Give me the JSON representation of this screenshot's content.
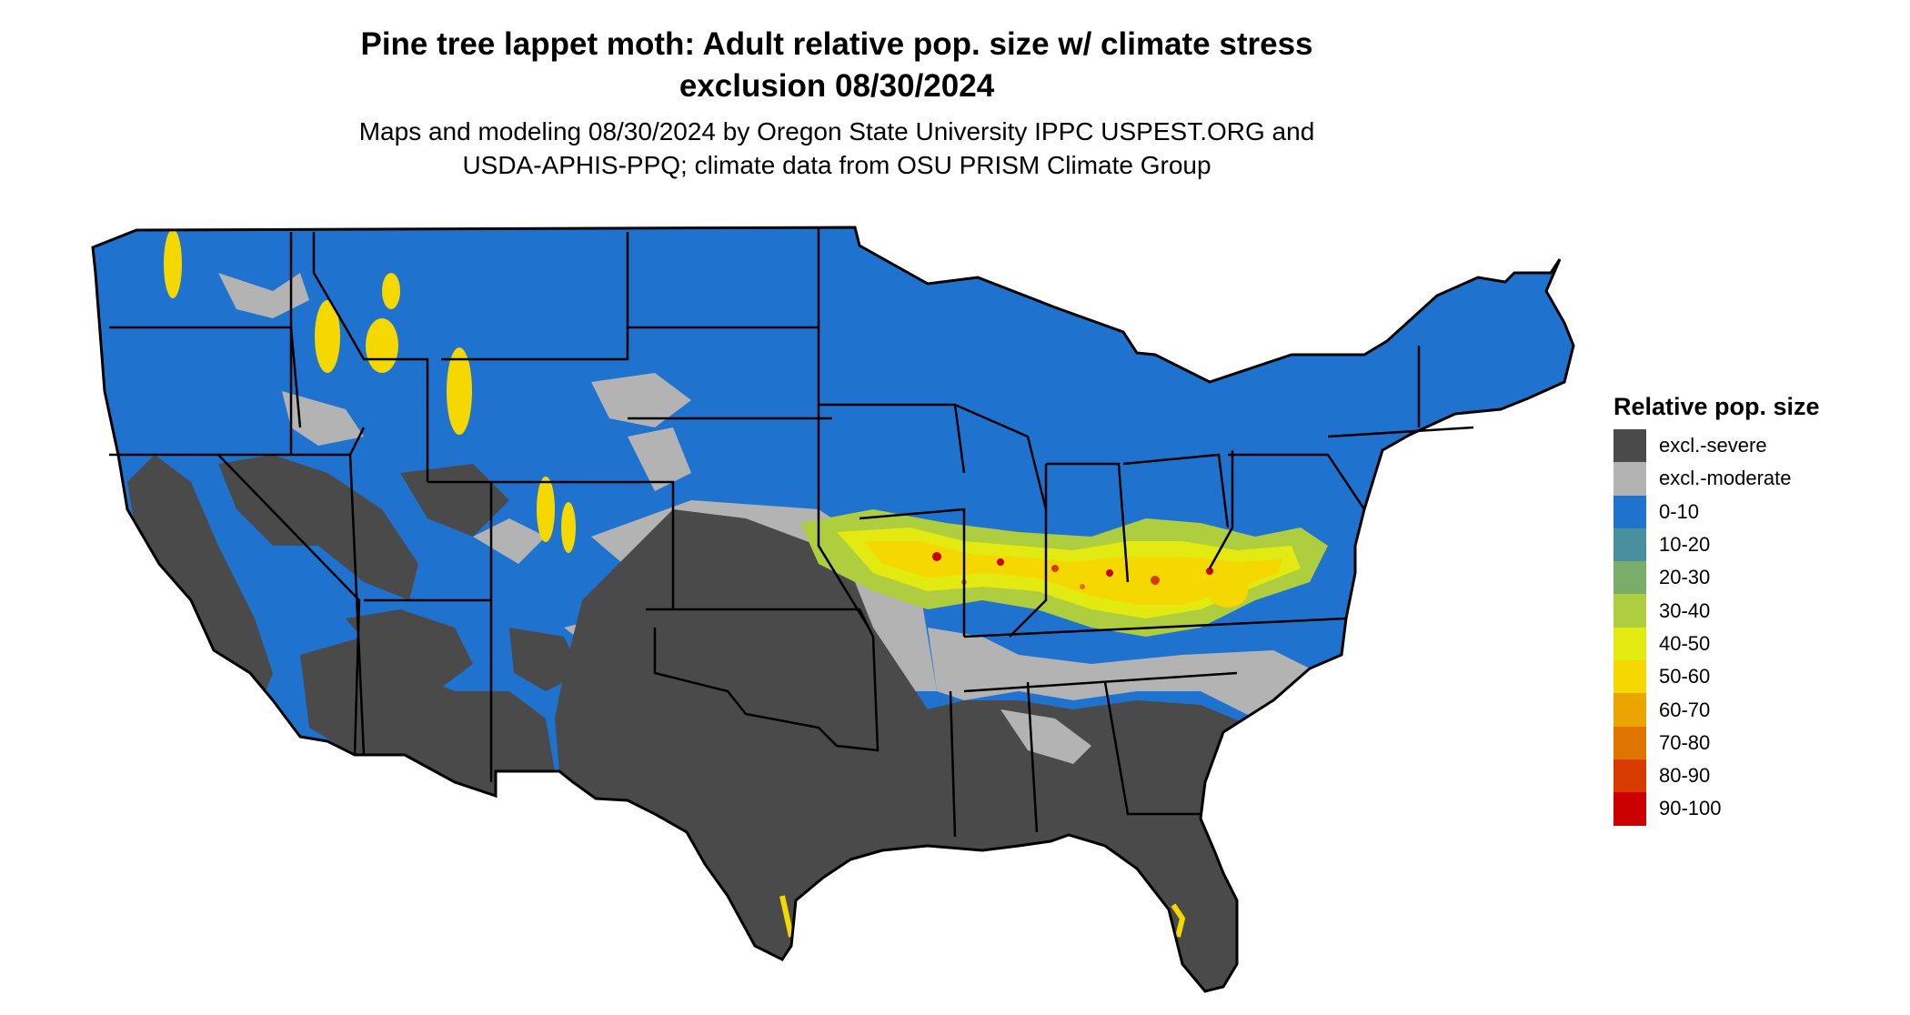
{
  "title_line1": "Pine tree lappet moth: Adult relative pop. size w/ climate stress",
  "title_line2": "exclusion 08/30/2024",
  "subtitle_line1": "Maps and modeling 08/30/2024 by Oregon State University IPPC USPEST.ORG and",
  "subtitle_line2": "USDA-APHIS-PPQ; climate data from OSU PRISM Climate Group",
  "legend": {
    "title": "Relative pop. size",
    "items": [
      {
        "label": "excl.-severe",
        "color": "#4a4a4a"
      },
      {
        "label": "excl.-moderate",
        "color": "#b3b3b3"
      },
      {
        "label": "0-10",
        "color": "#1f73cf"
      },
      {
        "label": "10-20",
        "color": "#4a8f9e"
      },
      {
        "label": "20-30",
        "color": "#7aad6a"
      },
      {
        "label": "30-40",
        "color": "#aecd3f"
      },
      {
        "label": "40-50",
        "color": "#e2ea12"
      },
      {
        "label": "50-60",
        "color": "#f5d800"
      },
      {
        "label": "60-70",
        "color": "#eba500"
      },
      {
        "label": "70-80",
        "color": "#e07400"
      },
      {
        "label": "80-90",
        "color": "#d73b00"
      },
      {
        "label": "90-100",
        "color": "#cc0000"
      }
    ]
  },
  "colors": {
    "severe": "#4a4a4a",
    "moderate": "#b3b3b3",
    "low": "#1f73cf",
    "mid": "#aecd3f",
    "high": "#f5d800",
    "peak": "#cc0000",
    "border": "#000000"
  }
}
